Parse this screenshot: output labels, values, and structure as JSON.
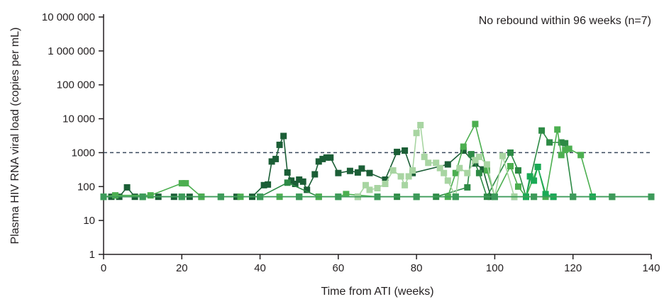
{
  "chart_data": {
    "type": "line",
    "annotation": "No rebound within 96 weeks (n=7)",
    "xlabel": "Time from ATI (weeks)",
    "ylabel": "Plasma HIV RNA viral load (copies per mL)",
    "xlim": [
      0,
      140
    ],
    "ylim": [
      1,
      10000000
    ],
    "yscale": "log",
    "x_ticks": [
      0,
      20,
      40,
      60,
      80,
      100,
      120,
      140
    ],
    "x_tick_labels": [
      "0",
      "20",
      "40",
      "60",
      "80",
      "100",
      "120",
      "140"
    ],
    "y_ticks": [
      1,
      10,
      100,
      1000,
      10000,
      100000,
      1000000,
      10000000
    ],
    "y_tick_labels": [
      "1",
      "10",
      "100",
      "1000",
      "10 000",
      "100 000",
      "1 000 000",
      "10 000 000"
    ],
    "threshold": {
      "value": 1000,
      "style": "dashed",
      "color": "#3a4a5c"
    },
    "grid": false,
    "marker": "square",
    "series": [
      {
        "color": "#1b5e36",
        "points": [
          [
            0,
            50
          ],
          [
            2,
            50
          ],
          [
            4,
            50
          ],
          [
            6,
            95
          ],
          [
            8,
            50
          ],
          [
            10,
            50
          ],
          [
            14,
            50
          ],
          [
            18,
            50
          ],
          [
            22,
            50
          ],
          [
            25,
            50
          ],
          [
            30,
            50
          ],
          [
            34,
            50
          ],
          [
            38,
            50
          ],
          [
            41,
            110
          ],
          [
            42,
            115
          ],
          [
            43,
            550
          ],
          [
            44,
            650
          ],
          [
            45,
            1700
          ],
          [
            46,
            3100
          ],
          [
            47,
            260
          ],
          [
            48,
            150
          ],
          [
            49,
            120
          ],
          [
            50,
            160
          ],
          [
            51,
            140
          ],
          [
            52,
            80
          ],
          [
            54,
            230
          ],
          [
            55,
            550
          ],
          [
            56,
            650
          ],
          [
            57,
            720
          ],
          [
            58,
            720
          ],
          [
            60,
            250
          ],
          [
            63,
            290
          ],
          [
            65,
            260
          ],
          [
            66,
            340
          ],
          [
            68,
            250
          ],
          [
            72,
            160
          ],
          [
            75,
            1050
          ],
          [
            77,
            1150
          ],
          [
            79,
            250
          ],
          [
            88,
            450
          ],
          [
            92,
            1150
          ],
          [
            95,
            480
          ],
          [
            97,
            320
          ],
          [
            99,
            50
          ],
          [
            105,
            50
          ],
          [
            115,
            50
          ],
          [
            125,
            50
          ],
          [
            140,
            50
          ]
        ]
      },
      {
        "color": "#2d8a45",
        "points": [
          [
            0,
            50
          ],
          [
            10,
            50
          ],
          [
            20,
            50
          ],
          [
            30,
            50
          ],
          [
            40,
            50
          ],
          [
            47,
            130
          ],
          [
            55,
            50
          ],
          [
            65,
            50
          ],
          [
            75,
            50
          ],
          [
            85,
            50
          ],
          [
            93,
            95
          ],
          [
            94,
            900
          ],
          [
            96,
            250
          ],
          [
            98,
            50
          ],
          [
            104,
            1000
          ],
          [
            106,
            300
          ],
          [
            108,
            50
          ],
          [
            112,
            4500
          ],
          [
            114,
            2000
          ],
          [
            117,
            2000
          ],
          [
            118,
            1900
          ],
          [
            120,
            50
          ],
          [
            130,
            50
          ],
          [
            140,
            50
          ]
        ]
      },
      {
        "color": "#4caf50",
        "points": [
          [
            0,
            50
          ],
          [
            3,
            55
          ],
          [
            12,
            55
          ],
          [
            20,
            125
          ],
          [
            21,
            125
          ],
          [
            25,
            50
          ],
          [
            35,
            50
          ],
          [
            45,
            50
          ],
          [
            55,
            50
          ],
          [
            60,
            50
          ],
          [
            62,
            60
          ],
          [
            70,
            50
          ],
          [
            80,
            50
          ],
          [
            88,
            50
          ],
          [
            90,
            250
          ],
          [
            92,
            1500
          ],
          [
            95,
            7000
          ],
          [
            98,
            300
          ],
          [
            100,
            50
          ],
          [
            104,
            400
          ],
          [
            106,
            100
          ],
          [
            108,
            50
          ],
          [
            111,
            380
          ],
          [
            113,
            50
          ],
          [
            116,
            4800
          ],
          [
            117,
            850
          ],
          [
            118,
            1200
          ],
          [
            119,
            1300
          ],
          [
            122,
            850
          ],
          [
            125,
            50
          ],
          [
            130,
            50
          ],
          [
            140,
            50
          ]
        ]
      },
      {
        "color": "#a8d5a2",
        "points": [
          [
            0,
            50
          ],
          [
            10,
            50
          ],
          [
            20,
            50
          ],
          [
            30,
            50
          ],
          [
            40,
            50
          ],
          [
            50,
            50
          ],
          [
            60,
            50
          ],
          [
            65,
            50
          ],
          [
            67,
            110
          ],
          [
            68,
            80
          ],
          [
            70,
            90
          ],
          [
            72,
            120
          ],
          [
            74,
            300
          ],
          [
            76,
            200
          ],
          [
            77,
            110
          ],
          [
            78,
            200
          ],
          [
            79,
            300
          ],
          [
            80,
            3800
          ],
          [
            81,
            6500
          ],
          [
            82,
            750
          ],
          [
            83,
            500
          ],
          [
            85,
            500
          ],
          [
            86,
            350
          ],
          [
            87,
            250
          ],
          [
            88,
            150
          ],
          [
            90,
            50
          ],
          [
            91,
            350
          ],
          [
            93,
            250
          ],
          [
            95,
            600
          ],
          [
            96,
            750
          ],
          [
            98,
            450
          ],
          [
            100,
            50
          ],
          [
            102,
            800
          ],
          [
            105,
            50
          ],
          [
            110,
            50
          ],
          [
            120,
            50
          ],
          [
            130,
            50
          ],
          [
            140,
            50
          ]
        ]
      },
      {
        "color": "#1aaa55",
        "points": [
          [
            0,
            50
          ],
          [
            10,
            50
          ],
          [
            20,
            50
          ],
          [
            30,
            50
          ],
          [
            40,
            50
          ],
          [
            50,
            50
          ],
          [
            60,
            50
          ],
          [
            70,
            50
          ],
          [
            80,
            50
          ],
          [
            90,
            50
          ],
          [
            100,
            50
          ],
          [
            108,
            50
          ],
          [
            109,
            200
          ],
          [
            110,
            150
          ],
          [
            111,
            380
          ],
          [
            113,
            60
          ],
          [
            115,
            50
          ],
          [
            125,
            50
          ],
          [
            140,
            50
          ]
        ]
      },
      {
        "color": "#7cc47f",
        "points": [
          [
            0,
            50
          ],
          [
            10,
            50
          ],
          [
            20,
            50
          ],
          [
            30,
            50
          ],
          [
            40,
            50
          ],
          [
            50,
            50
          ],
          [
            60,
            50
          ],
          [
            70,
            50
          ],
          [
            80,
            50
          ],
          [
            90,
            50
          ],
          [
            100,
            50
          ],
          [
            110,
            50
          ],
          [
            120,
            50
          ],
          [
            130,
            50
          ],
          [
            140,
            50
          ]
        ]
      },
      {
        "color": "#3d9a5a",
        "points": [
          [
            0,
            50
          ],
          [
            10,
            50
          ],
          [
            20,
            50
          ],
          [
            30,
            50
          ],
          [
            40,
            50
          ],
          [
            50,
            50
          ],
          [
            60,
            50
          ],
          [
            70,
            50
          ],
          [
            80,
            50
          ],
          [
            90,
            50
          ],
          [
            100,
            50
          ],
          [
            110,
            50
          ],
          [
            120,
            50
          ],
          [
            130,
            50
          ],
          [
            140,
            50
          ]
        ]
      }
    ]
  }
}
